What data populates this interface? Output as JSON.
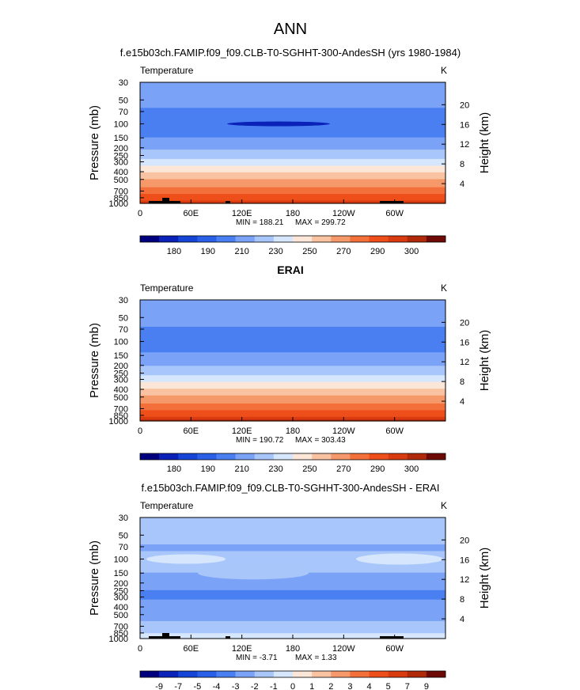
{
  "figure_title": "ANN",
  "chart_data": [
    {
      "type": "heatmap",
      "title": "f.e15b03ch.FAMIP.f09_f09.CLB-T0-SGHHT-300-AndesSH (yrs 1980-1984)",
      "field_label": "Temperature",
      "units": "K",
      "ylabel": "Pressure  (mb)",
      "ylabel_right": "Height  (km)",
      "xticks": [
        "0",
        "60E",
        "120E",
        "180",
        "120W",
        "60W"
      ],
      "yticks": [
        "30",
        "50",
        "70",
        "100",
        "150",
        "200",
        "250",
        "300",
        "400",
        "500",
        "700",
        "850",
        "1000"
      ],
      "height_ticks": [
        "20",
        "16",
        "12",
        "8",
        "4"
      ],
      "min_label": "MIN = 188.21",
      "max_label": "MAX = 299.72",
      "min": 188.21,
      "max": 299.72,
      "colorbar_labels": [
        "180",
        "190",
        "210",
        "230",
        "250",
        "270",
        "290",
        "300"
      ],
      "colorbar_colors": [
        "#00007f",
        "#0a22b8",
        "#1545d6",
        "#2a60e8",
        "#4a7ff2",
        "#7aa2f7",
        "#a9c6fb",
        "#d5e6fd",
        "#fbe6d8",
        "#f9c3a2",
        "#f6996a",
        "#f4703b",
        "#ee4e1a",
        "#d93b10",
        "#b02a0a",
        "#6e0a05"
      ],
      "colorbar_values": [
        175,
        180,
        185,
        190,
        200,
        210,
        220,
        230,
        240,
        250,
        260,
        270,
        280,
        290,
        295,
        300
      ],
      "temperature_profile": {
        "pressure_mb": [
          30,
          50,
          70,
          100,
          150,
          200,
          250,
          300,
          400,
          500,
          700,
          850,
          1000
        ],
        "temp_K": [
          212,
          214,
          208,
          200,
          210,
          218,
          226,
          234,
          248,
          260,
          275,
          285,
          293
        ]
      }
    },
    {
      "type": "heatmap",
      "title": "ERAI",
      "field_label": "Temperature",
      "units": "K",
      "ylabel": "Pressure  (mb)",
      "ylabel_right": "Height  (km)",
      "xticks": [
        "0",
        "60E",
        "120E",
        "180",
        "120W",
        "60W"
      ],
      "yticks": [
        "30",
        "50",
        "70",
        "100",
        "150",
        "200",
        "250",
        "300",
        "400",
        "500",
        "700",
        "850",
        "1000"
      ],
      "height_ticks": [
        "20",
        "16",
        "12",
        "8",
        "4"
      ],
      "min_label": "MIN = 190.72",
      "max_label": "MAX = 303.43",
      "min": 190.72,
      "max": 303.43,
      "colorbar_labels": [
        "180",
        "190",
        "210",
        "230",
        "250",
        "270",
        "290",
        "300"
      ],
      "colorbar_colors": [
        "#00007f",
        "#0a22b8",
        "#1545d6",
        "#2a60e8",
        "#4a7ff2",
        "#7aa2f7",
        "#a9c6fb",
        "#d5e6fd",
        "#fbe6d8",
        "#f9c3a2",
        "#f6996a",
        "#f4703b",
        "#ee4e1a",
        "#d93b10",
        "#b02a0a",
        "#6e0a05"
      ],
      "colorbar_values": [
        175,
        180,
        185,
        190,
        200,
        210,
        220,
        230,
        240,
        250,
        260,
        270,
        280,
        290,
        295,
        300
      ],
      "temperature_profile": {
        "pressure_mb": [
          30,
          50,
          70,
          100,
          150,
          200,
          250,
          300,
          400,
          500,
          700,
          850,
          1000
        ],
        "temp_K": [
          214,
          215,
          209,
          202,
          212,
          219,
          227,
          236,
          250,
          262,
          278,
          288,
          297
        ]
      }
    },
    {
      "type": "heatmap",
      "title": "f.e15b03ch.FAMIP.f09_f09.CLB-T0-SGHHT-300-AndesSH - ERAI",
      "field_label": "Temperature",
      "units": "K",
      "ylabel": "Pressure  (mb)",
      "ylabel_right": "Height  (km)",
      "xticks": [
        "0",
        "60E",
        "120E",
        "180",
        "120W",
        "60W"
      ],
      "yticks": [
        "30",
        "50",
        "70",
        "100",
        "150",
        "200",
        "250",
        "300",
        "400",
        "500",
        "700",
        "850",
        "1000"
      ],
      "height_ticks": [
        "20",
        "16",
        "12",
        "8",
        "4"
      ],
      "min_label": "MIN =  -3.71",
      "max_label": "MAX =    1.33",
      "min": -3.71,
      "max": 1.33,
      "colorbar_labels": [
        "-9",
        "-7",
        "-5",
        "-4",
        "-3",
        "-2",
        "-1",
        "0",
        "1",
        "2",
        "3",
        "4",
        "5",
        "7",
        "9"
      ],
      "colorbar_colors": [
        "#00007f",
        "#0a22b8",
        "#1545d6",
        "#2a60e8",
        "#4a7ff2",
        "#7aa2f7",
        "#a9c6fb",
        "#d5e6fd",
        "#fbe6d8",
        "#f9c3a2",
        "#f6996a",
        "#f4703b",
        "#ee4e1a",
        "#d93b10",
        "#b02a0a",
        "#6e0a05"
      ],
      "difference_profile": {
        "pressure_mb": [
          30,
          50,
          70,
          100,
          150,
          200,
          250,
          300,
          400,
          500,
          700,
          850,
          1000
        ],
        "diff_K": [
          -1.2,
          -1.4,
          -2.2,
          -1.5,
          -2.0,
          -2.6,
          -3.0,
          -3.1,
          -2.7,
          -2.4,
          -1.6,
          -1.0,
          -0.4
        ]
      }
    }
  ]
}
